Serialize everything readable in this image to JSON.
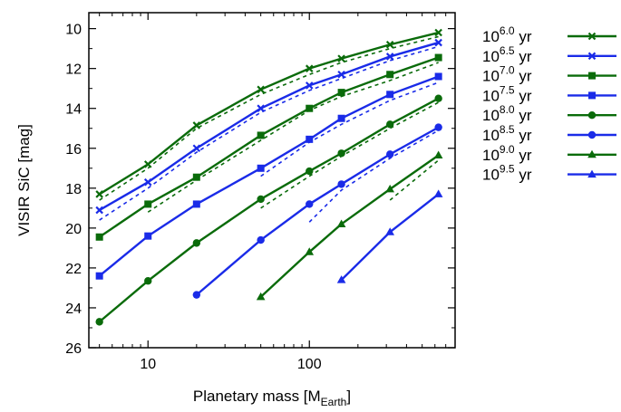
{
  "chart_data": {
    "type": "line",
    "xlabel": "Planetary mass [M",
    "xlabel_sub": "Earth",
    "xlabel_end": "]",
    "ylabel": "VISIR SiC [mag]",
    "x_scale": "log",
    "xlim": [
      4.3,
      800
    ],
    "ylim": [
      26,
      9.2
    ],
    "y_inverted": true,
    "x_ticks": [
      10,
      100
    ],
    "x_tick_labels": [
      "10",
      "100"
    ],
    "y_ticks": [
      10,
      12,
      14,
      16,
      18,
      20,
      22,
      24,
      26
    ],
    "y_tick_labels": [
      "10",
      "12",
      "14",
      "16",
      "18",
      "20",
      "22",
      "24",
      "26"
    ],
    "grid": false,
    "legend_position": "outside-right",
    "colors": {
      "green": "#0a6b0a",
      "blue": "#1a2be8"
    },
    "series": [
      {
        "name_base": "10",
        "name_exp": "6.0",
        "name_unit": "yr",
        "color": "#0a6b0a",
        "marker": "x",
        "x": [
          5,
          10,
          20,
          50,
          100,
          158,
          316,
          631
        ],
        "y": [
          18.3,
          16.8,
          14.85,
          13.05,
          12.0,
          11.5,
          10.8,
          10.2
        ],
        "dashed_x": [
          5,
          10,
          20,
          50,
          100,
          158,
          316,
          631
        ],
        "dashed_y": [
          18.6,
          17.0,
          15.0,
          13.3,
          12.3,
          11.7,
          11.0,
          10.4
        ]
      },
      {
        "name_base": "10",
        "name_exp": "6.5",
        "name_unit": "yr",
        "color": "#1a2be8",
        "marker": "x",
        "x": [
          5,
          10,
          20,
          50,
          100,
          158,
          316,
          631
        ],
        "y": [
          19.1,
          17.7,
          16.0,
          14.0,
          12.85,
          12.3,
          11.4,
          10.7
        ],
        "dashed_x": [
          5,
          10,
          20,
          50,
          100,
          158,
          316,
          631
        ],
        "dashed_y": [
          19.6,
          18.0,
          16.2,
          14.2,
          13.1,
          12.5,
          11.6,
          10.9
        ]
      },
      {
        "name_base": "10",
        "name_exp": "7.0",
        "name_unit": "yr",
        "color": "#0a6b0a",
        "marker": "square",
        "x": [
          5,
          10,
          20,
          50,
          100,
          158,
          316,
          631
        ],
        "y": [
          20.45,
          18.8,
          17.45,
          15.35,
          14.0,
          13.2,
          12.3,
          11.45
        ],
        "dashed_x": [
          10,
          20,
          50,
          100,
          158,
          316,
          631
        ],
        "dashed_y": [
          19.2,
          17.6,
          15.6,
          14.1,
          13.4,
          12.6,
          11.7
        ]
      },
      {
        "name_base": "10",
        "name_exp": "7.5",
        "name_unit": "yr",
        "color": "#1a2be8",
        "marker": "square",
        "x": [
          5,
          10,
          20,
          50,
          100,
          158,
          316,
          631
        ],
        "y": [
          22.4,
          20.4,
          18.8,
          17.0,
          15.55,
          14.5,
          13.3,
          12.4
        ],
        "dashed_x": [
          50,
          100,
          158,
          316,
          631
        ],
        "dashed_y": [
          17.4,
          15.7,
          14.8,
          13.6,
          12.7
        ]
      },
      {
        "name_base": "10",
        "name_exp": "8.0",
        "name_unit": "yr",
        "color": "#0a6b0a",
        "marker": "circle",
        "x": [
          5,
          10,
          20,
          50,
          100,
          158,
          316,
          631
        ],
        "y": [
          24.7,
          22.65,
          20.75,
          18.55,
          17.15,
          16.25,
          14.8,
          13.5
        ],
        "dashed_x": [
          50,
          100,
          158,
          316,
          631
        ],
        "dashed_y": [
          19.0,
          17.4,
          16.4,
          15.0,
          13.7
        ]
      },
      {
        "name_base": "10",
        "name_exp": "8.5",
        "name_unit": "yr",
        "color": "#1a2be8",
        "marker": "circle",
        "x": [
          20,
          50,
          100,
          158,
          316,
          631
        ],
        "y": [
          23.35,
          20.6,
          18.8,
          17.8,
          16.3,
          14.95
        ],
        "dashed_x": [
          100,
          158,
          316,
          631
        ],
        "dashed_y": [
          19.7,
          18.1,
          16.5,
          15.1
        ]
      },
      {
        "name_base": "10",
        "name_exp": "9.0",
        "name_unit": "yr",
        "color": "#0a6b0a",
        "marker": "triangle",
        "x": [
          50,
          100,
          158,
          316,
          631
        ],
        "y": [
          23.45,
          21.2,
          19.8,
          18.05,
          16.35
        ],
        "dashed_x": [
          316,
          631
        ],
        "dashed_y": [
          18.6,
          16.6
        ]
      },
      {
        "name_base": "10",
        "name_exp": "9.5",
        "name_unit": "yr",
        "color": "#1a2be8",
        "marker": "triangle",
        "x": [
          158,
          316,
          631
        ],
        "y": [
          22.6,
          20.2,
          18.3
        ],
        "dashed_x": [
          631
        ],
        "dashed_y": [
          18.6
        ]
      }
    ]
  }
}
